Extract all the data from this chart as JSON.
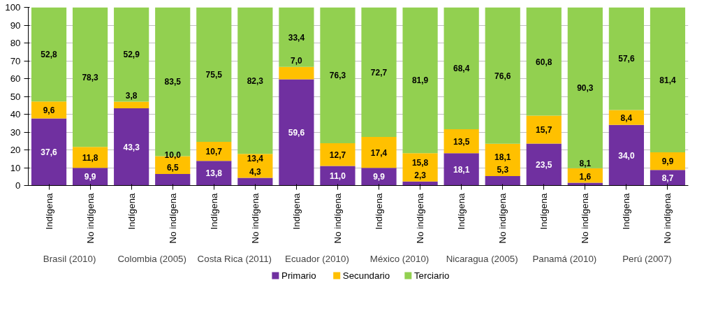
{
  "chart_data": {
    "type": "bar",
    "stacked": true,
    "categories": [
      "Indígena",
      "No indígena",
      "Indígena",
      "No indígena",
      "Indígena",
      "No indígena",
      "Indígena",
      "No indígena",
      "Indígena",
      "No indígena",
      "Indígena",
      "No indígena",
      "Indígena",
      "No indígena",
      "Indígena",
      "No indígena"
    ],
    "annotations": [
      "Brasil (2010)",
      "Colombia (2005)",
      "Costa Rica (2011)",
      "Ecuador (2010)",
      "México (2010)",
      "Nicaragua (2005)",
      "Panamá (2010)",
      "Perú (2007)"
    ],
    "series": [
      {
        "name": "Primario",
        "color": "#7030a0",
        "values": [
          37.6,
          9.9,
          43.3,
          6.5,
          13.8,
          4.3,
          59.6,
          11.0,
          9.9,
          2.3,
          18.1,
          5.3,
          23.5,
          1.6,
          34.0,
          8.7
        ],
        "value_labels": [
          "37,6",
          "9,9",
          "43,3",
          "6,5",
          "13,8",
          "4,3",
          "59,6",
          "11,0",
          "9,9",
          "2,3",
          "18,1",
          "5,3",
          "23,5",
          "1,6",
          "34,0",
          "8,7"
        ]
      },
      {
        "name": "Secundario",
        "color": "#ffc000",
        "values": [
          9.6,
          11.8,
          3.8,
          10.0,
          10.7,
          13.4,
          7.0,
          12.7,
          17.4,
          15.8,
          13.5,
          18.1,
          15.7,
          8.1,
          8.4,
          9.9
        ],
        "value_labels": [
          "9,6",
          "11,8",
          "3,8",
          "10,0",
          "10,7",
          "13,4",
          "7,0",
          "12,7",
          "17,4",
          "15,8",
          "13,5",
          "18,1",
          "15,7",
          "8,1",
          "8,4",
          "9,9"
        ]
      },
      {
        "name": "Terciario",
        "color": "#92d050",
        "values": [
          52.8,
          78.3,
          52.9,
          83.5,
          75.5,
          82.3,
          33.4,
          76.3,
          72.7,
          81.9,
          68.4,
          76.6,
          60.8,
          90.3,
          57.6,
          81.4
        ],
        "value_labels": [
          "52,8",
          "78,3",
          "52,9",
          "83,5",
          "75,5",
          "82,3",
          "33,4",
          "76,3",
          "72,7",
          "81,9",
          "68,4",
          "76,6",
          "60,8",
          "90,3",
          "57,6",
          "81,4"
        ]
      }
    ],
    "ylim": [
      0,
      100
    ],
    "yticks": [
      0,
      10,
      20,
      30,
      40,
      50,
      60,
      70,
      80,
      90,
      100
    ],
    "grid": "y",
    "legend": "bottom"
  }
}
